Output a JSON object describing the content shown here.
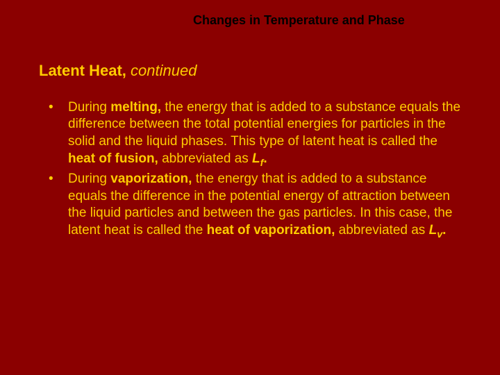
{
  "colors": {
    "background": "#8b0000",
    "header_text": "#000000",
    "body_text": "#ffcc00"
  },
  "typography": {
    "header_fontsize": 18,
    "subtitle_fontsize": 22,
    "body_fontsize": 19,
    "font_family": "Arial"
  },
  "header": {
    "title": "Changes in Temperature and Phase"
  },
  "subtitle": {
    "main": "Latent Heat, ",
    "italic": "continued"
  },
  "bullets": [
    {
      "pre1": "During ",
      "bold1": "melting,",
      "mid1": " the energy that is added to a substance equals the difference between the total potential energies for particles in the solid and the liquid phases. This type of latent heat is called the ",
      "bold2": "heat of fusion,",
      "mid2": " abbreviated as ",
      "sym_main": "L",
      "sym_sub": "f",
      "post": "."
    },
    {
      "pre1": "During ",
      "bold1": "vaporization,",
      "mid1": " the energy that is added to a substance equals the difference in the potential energy of attraction between the liquid particles and between the gas particles. In this case, the latent heat is called the ",
      "bold2": "heat of vaporization,",
      "mid2": " abbreviated as ",
      "sym_main": "L",
      "sym_sub": "v",
      "post": "."
    }
  ]
}
